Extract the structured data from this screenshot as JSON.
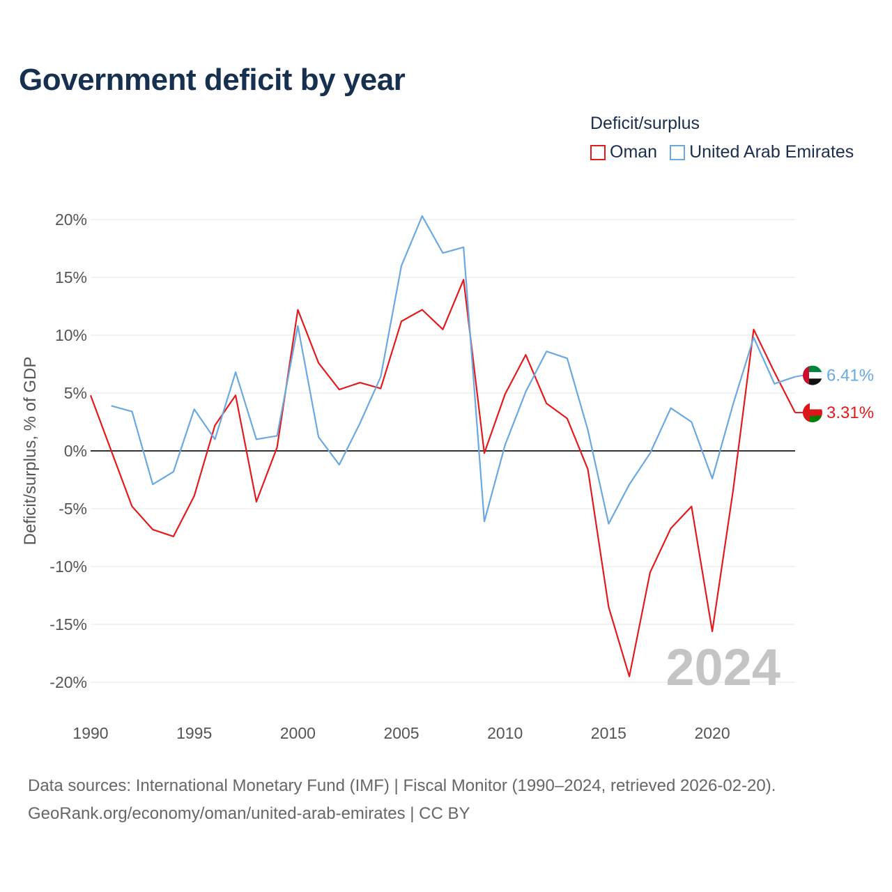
{
  "chart_data": {
    "type": "line",
    "title": "Government deficit by year",
    "ylabel": "Deficit/surplus, % of GDP",
    "xlabel": "",
    "legend_title": "Deficit/surplus",
    "year_watermark": "2024",
    "xlim": [
      1990,
      2024
    ],
    "ylim": [
      -22,
      22
    ],
    "x_ticks": [
      1990,
      1995,
      2000,
      2005,
      2010,
      2015,
      2020
    ],
    "y_ticks": [
      20,
      15,
      10,
      5,
      0,
      -5,
      -10,
      -15,
      -20
    ],
    "y_tick_labels": [
      "20%",
      "15%",
      "10%",
      "5%",
      "0%",
      "-5%",
      "-10%",
      "-15%",
      "-20%"
    ],
    "series": [
      {
        "name": "Oman",
        "color": "#e31a1c",
        "end_label": "3.31%",
        "x": [
          1990,
          1991,
          1992,
          1993,
          1994,
          1995,
          1996,
          1997,
          1998,
          1999,
          2000,
          2001,
          2002,
          2003,
          2004,
          2005,
          2006,
          2007,
          2008,
          2009,
          2010,
          2011,
          2012,
          2013,
          2014,
          2015,
          2016,
          2017,
          2018,
          2019,
          2020,
          2021,
          2022,
          2023,
          2024
        ],
        "values": [
          4.8,
          0.0,
          -4.8,
          -6.8,
          -7.4,
          -3.9,
          2.2,
          4.8,
          -4.4,
          0.3,
          12.2,
          7.6,
          5.3,
          5.9,
          5.4,
          11.2,
          12.2,
          10.5,
          14.8,
          -0.2,
          4.9,
          8.3,
          4.1,
          2.8,
          -1.6,
          -13.5,
          -19.5,
          -10.5,
          -6.7,
          -4.8,
          -15.6,
          -3.5,
          10.5,
          6.8,
          3.31
        ]
      },
      {
        "name": "United Arab Emirates",
        "color": "#6aa8e0",
        "end_label": "6.41%",
        "x": [
          1991,
          1992,
          1993,
          1994,
          1995,
          1996,
          1997,
          1998,
          1999,
          2000,
          2001,
          2002,
          2003,
          2004,
          2005,
          2006,
          2007,
          2008,
          2009,
          2010,
          2011,
          2012,
          2013,
          2014,
          2015,
          2016,
          2017,
          2018,
          2019,
          2020,
          2021,
          2022,
          2023,
          2024
        ],
        "values": [
          3.9,
          3.4,
          -2.9,
          -1.8,
          3.6,
          1.0,
          6.8,
          1.0,
          1.3,
          10.8,
          1.2,
          -1.2,
          2.4,
          6.4,
          16.0,
          20.3,
          17.1,
          17.6,
          -6.1,
          0.5,
          5.1,
          8.6,
          8.0,
          1.8,
          -6.3,
          -2.9,
          -0.2,
          3.7,
          2.5,
          -2.4,
          4.0,
          9.8,
          5.8,
          6.41
        ]
      }
    ]
  },
  "footer": {
    "sources": "Data sources: International Monetary Fund (IMF) | Fiscal Monitor (1990–2024, retrieved 2026-02-20).",
    "credit": "GeoRank.org/economy/oman/united-arab-emirates | CC BY"
  }
}
